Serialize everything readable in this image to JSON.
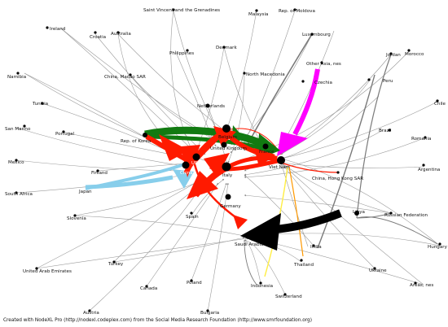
{
  "credit": "Created with NodeXL Pro (http://nodexl.codeplex.com) from the Social Media Research Foundation (http://www.smrfoundation.org)",
  "colors": {
    "green": "#117a11",
    "red": "#ff1a00",
    "light_blue": "#87ceeb",
    "magenta": "#ff00ff",
    "black": "#000000",
    "yellow": "#ffee44",
    "orange": "#ff9900",
    "grey": "#9a9a9a"
  },
  "nodes": {
    "saint_vincent": "Saint Vincent and the Grenadines",
    "malaysia": "Malaysia",
    "moldova": "Rep. of Moldova",
    "ireland": "Ireland",
    "croatia": "Croatia",
    "australia": "Australia",
    "luxembourg": "Luxembourg",
    "philippines": "Philippines",
    "denmark": "Denmark",
    "jordan": "Jordan",
    "morocco": "Morocco",
    "other_asia": "Other Asia, nes",
    "namibia": "Namibia",
    "china_macao": "China, Macao SAR",
    "north_macedonia": "North Macedonia",
    "czechia": "Czechia",
    "peru": "Peru",
    "tunisia": "Tunisia",
    "netherlands": "Netherlands",
    "chile": "Chile",
    "belgium": "Belgium",
    "san_marino": "San Marino",
    "portugal": "Portugal",
    "korea": "Rep. of Korea",
    "brazil": "Brazil",
    "uk": "United Kingdom",
    "romania": "Romania",
    "france": "France",
    "mexico": "Mexico",
    "usa": "USA",
    "viet_nam": "Viet Nam",
    "finland": "Finland",
    "china": "China",
    "italy": "Italy",
    "argentina": "Argentina",
    "hong_kong": "China, Hong Kong SAR",
    "south_africa": "South Africa",
    "japan": "Japan",
    "germany": "Germany",
    "slovenia": "Slovenia",
    "spain": "Spain",
    "russia": "Russian Federation",
    "libya": "Libya",
    "saudi_arabia": "Saudi Arabia",
    "india": "India",
    "hungary": "Hungary",
    "uae": "United Arab Emirates",
    "turkey": "Turkey",
    "thailand": "Thailand",
    "ukraine": "Ukraine",
    "poland": "Poland",
    "indonesia": "Indonesia",
    "areas_nes": "Areas, nes",
    "canada": "Canada",
    "switzerland": "Switzerland",
    "austria": "Austria",
    "bulgaria": "Bulgaria"
  }
}
